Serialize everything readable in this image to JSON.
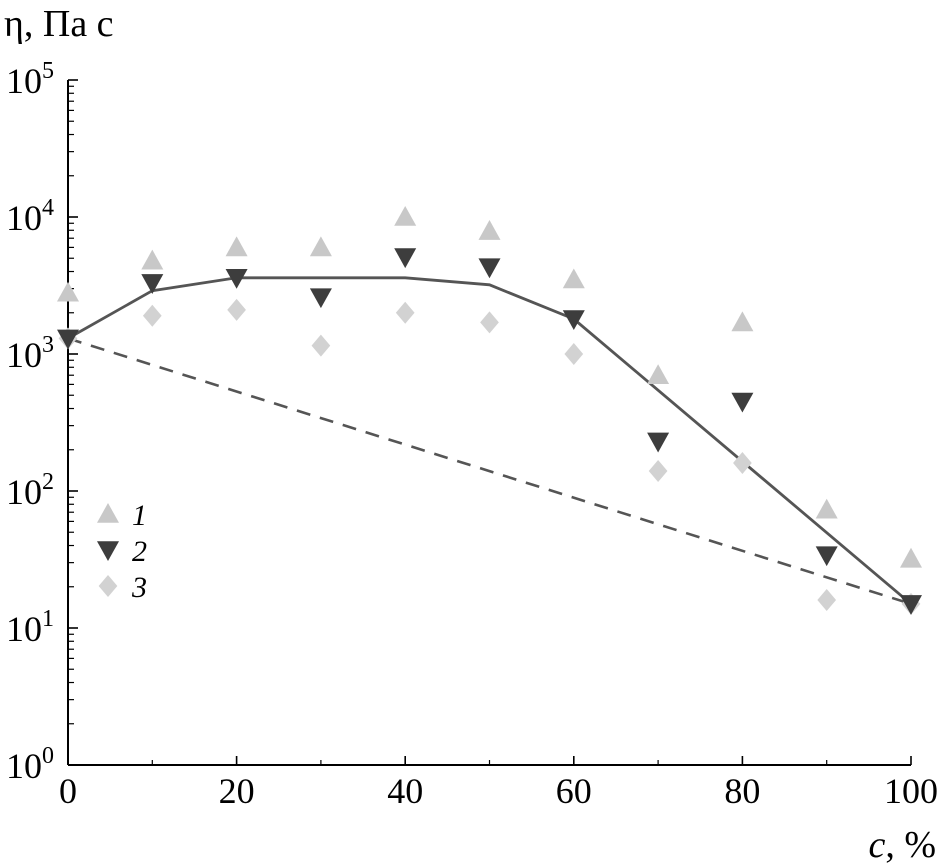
{
  "chart_data": {
    "type": "scatter",
    "ylabel": "η, Па с",
    "xlabel": "c, %",
    "xlim": [
      0,
      100
    ],
    "ylim_log10": [
      0,
      5
    ],
    "yscale": "log",
    "x_ticks": [
      "0",
      "20",
      "40",
      "60",
      "80",
      "100"
    ],
    "y_ticks": [
      {
        "base": "10",
        "exp": "0"
      },
      {
        "base": "10",
        "exp": "1"
      },
      {
        "base": "10",
        "exp": "2"
      },
      {
        "base": "10",
        "exp": "3"
      },
      {
        "base": "10",
        "exp": "4"
      },
      {
        "base": "10",
        "exp": "5"
      }
    ],
    "legend_position": "left-middle",
    "series": [
      {
        "name": "1",
        "marker": "triangle-up",
        "color": "#c8c8c8",
        "x": [
          0,
          10,
          20,
          30,
          40,
          50,
          60,
          70,
          80,
          90,
          100
        ],
        "y": [
          2800,
          4800,
          6000,
          6000,
          10000,
          7900,
          3500,
          700,
          1700,
          73,
          32
        ]
      },
      {
        "name": "2",
        "marker": "triangle-down",
        "color": "#3d3d3d",
        "x": [
          0,
          10,
          20,
          30,
          40,
          50,
          60,
          70,
          80,
          90,
          100
        ],
        "y": [
          1300,
          3300,
          3600,
          2600,
          5100,
          4300,
          1800,
          230,
          450,
          34,
          15
        ]
      },
      {
        "name": "3",
        "marker": "diamond",
        "color": "#d2d2d2",
        "x": [
          0,
          10,
          20,
          30,
          40,
          50,
          60,
          70,
          80,
          90,
          100
        ],
        "y": [
          1300,
          1900,
          2100,
          1150,
          2000,
          1700,
          1000,
          140,
          160,
          16,
          15
        ]
      }
    ],
    "lines": [
      {
        "style": "solid",
        "color": "#555555",
        "x": [
          0,
          10,
          20,
          40,
          50,
          60,
          100
        ],
        "y": [
          1300,
          2900,
          3600,
          3600,
          3200,
          1800,
          15
        ]
      },
      {
        "style": "dashed",
        "color": "#555555",
        "x": [
          0,
          100
        ],
        "y": [
          1300,
          15
        ]
      }
    ]
  }
}
